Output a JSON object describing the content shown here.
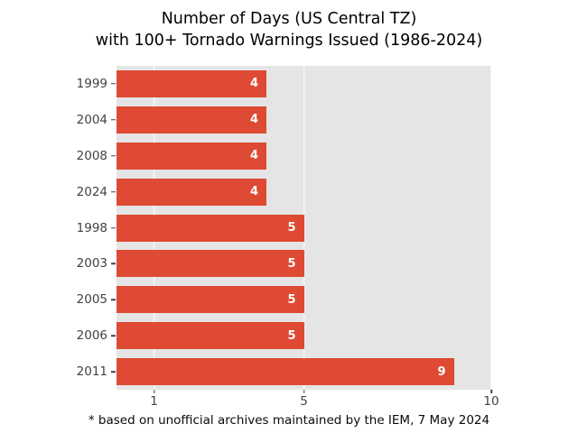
{
  "title": {
    "line1": "Number of Days (US Central TZ)",
    "line2": "with 100+ Tornado Warnings Issued (1986-2024)"
  },
  "footnote": "* based on unofficial archives maintained by the IEM, 7 May 2024",
  "chart_data": {
    "type": "bar",
    "orientation": "horizontal",
    "title": "Number of Days (US Central TZ)\nwith 100+ Tornado Warnings Issued (1986-2024)",
    "categories": [
      "1999",
      "2004",
      "2008",
      "2024",
      "1998",
      "2003",
      "2005",
      "2006",
      "2011"
    ],
    "values": [
      4,
      4,
      4,
      4,
      5,
      5,
      5,
      5,
      9
    ],
    "bar_value_labels": [
      "4",
      "4",
      "4",
      "4",
      "5",
      "5",
      "5",
      "5",
      "9"
    ],
    "xlabel": "",
    "ylabel": "",
    "xlim": [
      0,
      10
    ],
    "xticks": [
      1,
      5,
      10
    ],
    "xtick_labels": [
      "1",
      "5",
      "10"
    ],
    "grid": true,
    "legend": "none",
    "colors": {
      "bar": "#DE4A34",
      "plot_background": "#E5E5E5",
      "gridline": "#FFFFFF",
      "tick_text": "#424242",
      "title_text": "#000000"
    },
    "footnote": "* based on unofficial archives maintained by the IEM, 7 May 2024"
  }
}
